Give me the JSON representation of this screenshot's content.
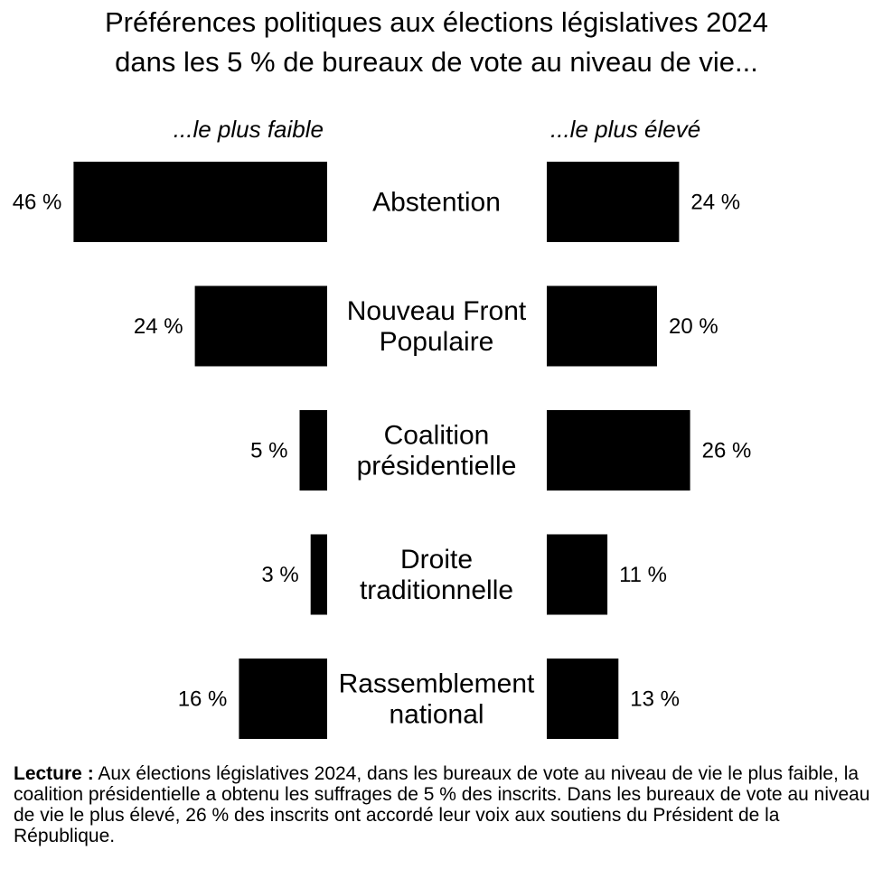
{
  "chart_data": {
    "type": "bar",
    "title": "Préférences politiques aux élections législatives 2024",
    "subtitle": "dans les 5 % de bureaux de vote au niveau de vie...",
    "categories": [
      [
        "Abstention"
      ],
      [
        "Nouveau Front",
        "Populaire"
      ],
      [
        "Coalition",
        "présidentielle"
      ],
      [
        "Droite",
        "traditionnelle"
      ],
      [
        "Rassemblement",
        "national"
      ]
    ],
    "series": [
      {
        "name": "...le plus faible",
        "values": [
          46,
          24,
          5,
          3,
          16
        ]
      },
      {
        "name": "...le plus élevé",
        "values": [
          24,
          20,
          26,
          11,
          13
        ]
      }
    ],
    "value_labels": {
      "low": [
        "46 %",
        "24 %",
        "5 %",
        "3 %",
        "16 %"
      ],
      "high": [
        "24 %",
        "20 %",
        "26 %",
        "11 %",
        "13 %"
      ]
    },
    "colors": {
      "bar": "#000000",
      "text": "#000000",
      "background": "#ffffff"
    },
    "grid": false
  },
  "note": {
    "lead": "Lecture :",
    "text": " Aux élections législatives 2024, dans les bureaux de vote au niveau de vie le plus faible, la coalition présidentielle a obtenu les suffrages de 5 % des inscrits. Dans les bureaux de vote au niveau de vie le plus élevé, 26 % des inscrits ont accordé leur voix aux soutiens du Président de la République."
  }
}
